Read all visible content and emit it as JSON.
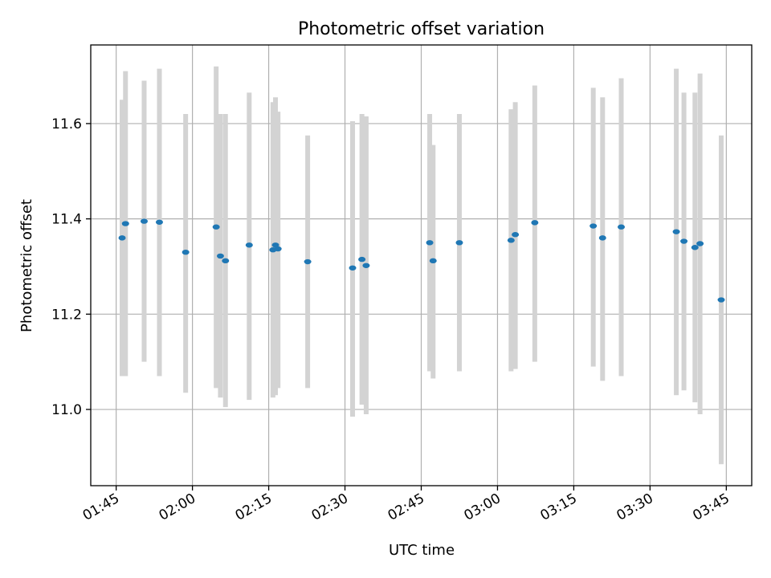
{
  "chart_data": {
    "type": "scatter",
    "title": "Photometric offset variation",
    "xlabel": "UTC time",
    "ylabel": "Photometric offset",
    "x_unit": "UTC time (HH:MM)",
    "xlim": [
      "01:40",
      "03:50"
    ],
    "ylim": [
      10.84,
      11.765
    ],
    "x_ticks": [
      "01:45",
      "02:00",
      "02:15",
      "02:30",
      "02:45",
      "03:00",
      "03:15",
      "03:30",
      "03:45"
    ],
    "y_ticks": [
      11.0,
      11.2,
      11.4,
      11.6
    ],
    "grid": true,
    "point_color": "#1f77b4",
    "errorbar_color": "#d3d3d3",
    "points": [
      {
        "x": "01:46:10",
        "y": 11.36,
        "lo": 11.07,
        "hi": 11.65
      },
      {
        "x": "01:46:50",
        "y": 11.39,
        "lo": 11.07,
        "hi": 11.71
      },
      {
        "x": "01:50:30",
        "y": 11.395,
        "lo": 11.1,
        "hi": 11.69
      },
      {
        "x": "01:53:30",
        "y": 11.393,
        "lo": 11.07,
        "hi": 11.715
      },
      {
        "x": "01:58:40",
        "y": 11.33,
        "lo": 11.035,
        "hi": 11.62
      },
      {
        "x": "02:04:40",
        "y": 11.383,
        "lo": 11.045,
        "hi": 11.72
      },
      {
        "x": "02:05:30",
        "y": 11.322,
        "lo": 11.025,
        "hi": 11.62
      },
      {
        "x": "02:06:30",
        "y": 11.312,
        "lo": 11.005,
        "hi": 11.62
      },
      {
        "x": "02:11:10",
        "y": 11.345,
        "lo": 11.02,
        "hi": 11.665
      },
      {
        "x": "02:15:50",
        "y": 11.335,
        "lo": 11.025,
        "hi": 11.645
      },
      {
        "x": "02:16:20",
        "y": 11.345,
        "lo": 11.03,
        "hi": 11.655
      },
      {
        "x": "02:16:50",
        "y": 11.337,
        "lo": 11.045,
        "hi": 11.625
      },
      {
        "x": "02:22:40",
        "y": 11.31,
        "lo": 11.045,
        "hi": 11.575
      },
      {
        "x": "02:31:30",
        "y": 11.297,
        "lo": 10.985,
        "hi": 11.605
      },
      {
        "x": "02:33:20",
        "y": 11.315,
        "lo": 11.01,
        "hi": 11.62
      },
      {
        "x": "02:34:10",
        "y": 11.302,
        "lo": 10.99,
        "hi": 11.615
      },
      {
        "x": "02:46:40",
        "y": 11.35,
        "lo": 11.08,
        "hi": 11.62
      },
      {
        "x": "02:47:20",
        "y": 11.312,
        "lo": 11.065,
        "hi": 11.555
      },
      {
        "x": "02:52:30",
        "y": 11.35,
        "lo": 11.08,
        "hi": 11.62
      },
      {
        "x": "03:02:40",
        "y": 11.355,
        "lo": 11.08,
        "hi": 11.63
      },
      {
        "x": "03:03:30",
        "y": 11.367,
        "lo": 11.085,
        "hi": 11.645
      },
      {
        "x": "03:07:20",
        "y": 11.392,
        "lo": 11.1,
        "hi": 11.68
      },
      {
        "x": "03:18:50",
        "y": 11.385,
        "lo": 11.09,
        "hi": 11.675
      },
      {
        "x": "03:20:40",
        "y": 11.36,
        "lo": 11.06,
        "hi": 11.655
      },
      {
        "x": "03:24:20",
        "y": 11.383,
        "lo": 11.07,
        "hi": 11.695
      },
      {
        "x": "03:35:10",
        "y": 11.373,
        "lo": 11.03,
        "hi": 11.715
      },
      {
        "x": "03:36:40",
        "y": 11.353,
        "lo": 11.04,
        "hi": 11.665
      },
      {
        "x": "03:38:50",
        "y": 11.34,
        "lo": 11.015,
        "hi": 11.665
      },
      {
        "x": "03:39:50",
        "y": 11.348,
        "lo": 10.99,
        "hi": 11.705
      },
      {
        "x": "03:44:00",
        "y": 11.23,
        "lo": 10.885,
        "hi": 11.575
      }
    ]
  }
}
